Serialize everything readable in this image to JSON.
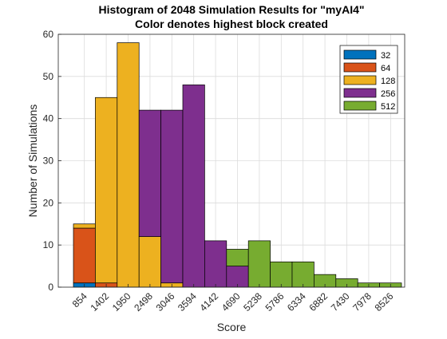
{
  "chart_data": {
    "type": "bar",
    "stacked": true,
    "title": "Histogram of 2048 Simulation Results for \"myAI4\"",
    "subtitle": "Color denotes highest block created",
    "xlabel": "Score",
    "ylabel": "Number of Simulations",
    "ylim": [
      0,
      60
    ],
    "yticks": [
      0,
      10,
      20,
      30,
      40,
      50,
      60
    ],
    "grid": true,
    "legend_position": "top-right",
    "categories": [
      "854",
      "1402",
      "1950",
      "2498",
      "3046",
      "3594",
      "4142",
      "4690",
      "5238",
      "5786",
      "6334",
      "6882",
      "7430",
      "7978",
      "8526"
    ],
    "series": [
      {
        "name": "32",
        "color": "#0072BD",
        "values": [
          1,
          0,
          0,
          0,
          0,
          0,
          0,
          0,
          0,
          0,
          0,
          0,
          0,
          0,
          0
        ]
      },
      {
        "name": "64",
        "color": "#D95319",
        "values": [
          13,
          1,
          0,
          0,
          0,
          0,
          0,
          0,
          0,
          0,
          0,
          0,
          0,
          0,
          0
        ]
      },
      {
        "name": "128",
        "color": "#EDB120",
        "values": [
          1,
          44,
          58,
          12,
          1,
          0,
          0,
          0,
          0,
          0,
          0,
          0,
          0,
          0,
          0
        ]
      },
      {
        "name": "256",
        "color": "#7E2F8E",
        "values": [
          0,
          0,
          0,
          30,
          41,
          48,
          11,
          5,
          0,
          0,
          0,
          0,
          0,
          0,
          0
        ]
      },
      {
        "name": "512",
        "color": "#77AC30",
        "values": [
          0,
          0,
          0,
          0,
          0,
          0,
          0,
          4,
          11,
          6,
          6,
          3,
          2,
          1,
          1
        ]
      }
    ]
  }
}
